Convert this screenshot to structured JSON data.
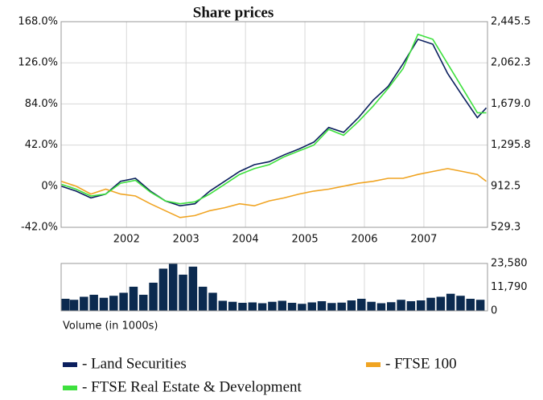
{
  "chart_data": [
    {
      "type": "line",
      "title": "Share prices",
      "x": [
        2000.9,
        2001.15,
        2001.4,
        2001.65,
        2001.9,
        2002.15,
        2002.4,
        2002.65,
        2002.9,
        2003.15,
        2003.4,
        2003.65,
        2003.9,
        2004.15,
        2004.4,
        2004.65,
        2004.9,
        2005.15,
        2005.4,
        2005.65,
        2005.9,
        2006.15,
        2006.4,
        2006.65,
        2006.9,
        2007.15,
        2007.4,
        2007.65,
        2007.9,
        2008.05
      ],
      "series": [
        {
          "name": "- Land Securities",
          "color": "#0b1f5e",
          "values": [
            0,
            -5,
            -12,
            -8,
            5,
            8,
            -5,
            -15,
            -20,
            -18,
            -5,
            5,
            15,
            22,
            25,
            32,
            38,
            45,
            60,
            55,
            70,
            88,
            102,
            125,
            150,
            145,
            115,
            92,
            70,
            80
          ]
        },
        {
          "name": "- FTSE 100",
          "color": "#f0a422",
          "values": [
            5,
            0,
            -8,
            -3,
            -8,
            -10,
            -18,
            -25,
            -32,
            -30,
            -25,
            -22,
            -18,
            -20,
            -15,
            -12,
            -8,
            -5,
            -3,
            0,
            3,
            5,
            8,
            8,
            12,
            15,
            18,
            15,
            12,
            5
          ]
        },
        {
          "name": "- FTSE Real Estate & Development",
          "color": "#3ee03e",
          "values": [
            2,
            -3,
            -10,
            -8,
            3,
            6,
            -6,
            -15,
            -18,
            -16,
            -8,
            2,
            12,
            18,
            22,
            30,
            36,
            42,
            58,
            52,
            66,
            82,
            100,
            120,
            155,
            150,
            125,
            100,
            75,
            75
          ]
        }
      ],
      "xlim": [
        2000.9,
        2008.07
      ],
      "xticks": [
        2002,
        2003,
        2004,
        2005,
        2006,
        2007
      ],
      "ylim": [
        -42,
        168
      ],
      "yticks": [
        {
          "value": 168,
          "label": "168.0%"
        },
        {
          "value": 126,
          "label": "126.0%"
        },
        {
          "value": 84,
          "label": "84.0%"
        },
        {
          "value": 42,
          "label": "42.0%"
        },
        {
          "value": 0,
          "label": "0%"
        },
        {
          "value": -42,
          "label": "-42.0%"
        }
      ],
      "y2lim": [
        529.3,
        2445.5
      ],
      "y2ticks": [
        {
          "value": 2445.5,
          "label": "2,445.5"
        },
        {
          "value": 2062.3,
          "label": "2,062.3"
        },
        {
          "value": 1679,
          "label": "1,679.0"
        },
        {
          "value": 1295.8,
          "label": "1,295.8"
        },
        {
          "value": 912.5,
          "label": "912.5"
        },
        {
          "value": 529.3,
          "label": "529.3"
        }
      ],
      "grid": true,
      "legend": "bottom"
    },
    {
      "type": "bar",
      "xlabel": "Volume (in 1000s)",
      "color": "#0b2a4f",
      "x": [
        2000.95,
        2001.117,
        2001.283,
        2001.45,
        2001.617,
        2001.783,
        2001.95,
        2002.117,
        2002.283,
        2002.45,
        2002.617,
        2002.783,
        2002.95,
        2003.117,
        2003.283,
        2003.45,
        2003.617,
        2003.783,
        2003.95,
        2004.117,
        2004.283,
        2004.45,
        2004.617,
        2004.783,
        2004.95,
        2005.117,
        2005.283,
        2005.45,
        2005.617,
        2005.783,
        2005.95,
        2006.117,
        2006.283,
        2006.45,
        2006.617,
        2006.783,
        2006.95,
        2007.117,
        2007.283,
        2007.45,
        2007.617,
        2007.783,
        2007.95
      ],
      "values": [
        6000,
        5500,
        7000,
        8000,
        6500,
        7500,
        9000,
        12000,
        8000,
        14000,
        21000,
        23580,
        18000,
        22000,
        12000,
        9000,
        5000,
        4500,
        4000,
        4200,
        3800,
        4500,
        5000,
        4000,
        3500,
        4200,
        4800,
        3900,
        4100,
        5200,
        6000,
        4500,
        3800,
        4300,
        5500,
        4800,
        5200,
        6500,
        7000,
        8500,
        7500,
        6000,
        5500
      ],
      "xlim": [
        2000.9,
        2008.07
      ],
      "xticks": [
        2002,
        2003,
        2004,
        2005,
        2006,
        2007
      ],
      "ylim": [
        0,
        23580
      ],
      "yticks": [
        {
          "value": 23580,
          "label": "23,580"
        },
        {
          "value": 11790,
          "label": "11,790"
        },
        0
      ],
      "grid": true
    }
  ]
}
